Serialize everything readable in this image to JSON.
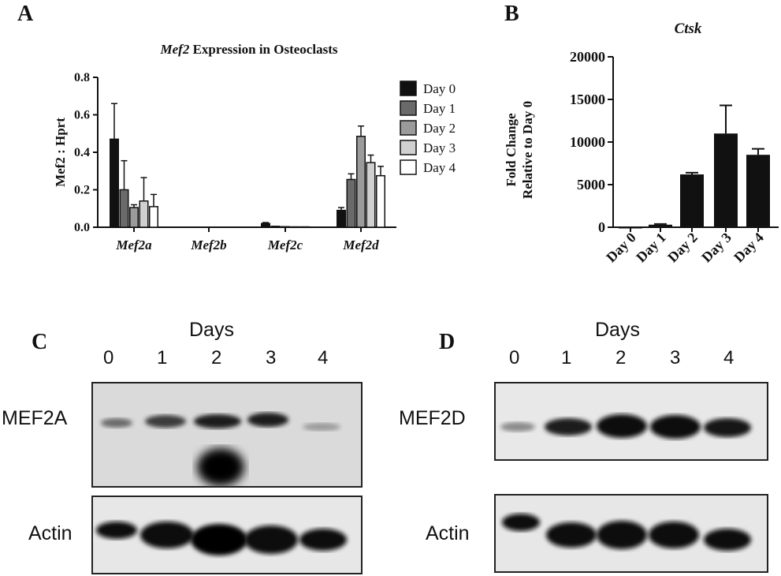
{
  "panels": {
    "a": "A",
    "b": "B",
    "c": "C",
    "d": "D"
  },
  "chart_data": [
    {
      "type": "bar",
      "title_italic": "Mef2",
      "title_rest": "Expression in Osteoclasts",
      "ylabel": "Mef2 : Hprt",
      "ylim": [
        0,
        0.8
      ],
      "yticks": [
        "0.0",
        "0.2",
        "0.4",
        "0.6",
        "0.8"
      ],
      "categories": [
        "Mef2a",
        "Mef2b",
        "Mef2c",
        "Mef2d"
      ],
      "legend_position": "right",
      "series": [
        {
          "name": "Day 0",
          "color": "#111111",
          "values": [
            0.47,
            0.0,
            0.02,
            0.09
          ],
          "errors": [
            0.19,
            0.0,
            0.005,
            0.015
          ]
        },
        {
          "name": "Day 1",
          "color": "#6a6a6a",
          "values": [
            0.2,
            0.0,
            0.005,
            0.255
          ],
          "errors": [
            0.155,
            0.0,
            0.0,
            0.03
          ]
        },
        {
          "name": "Day 2",
          "color": "#9b9b9b",
          "values": [
            0.105,
            0.0,
            0.003,
            0.485
          ],
          "errors": [
            0.015,
            0.0,
            0.0,
            0.055
          ]
        },
        {
          "name": "Day 3",
          "color": "#d0d0d0",
          "values": [
            0.14,
            0.0,
            0.002,
            0.345
          ],
          "errors": [
            0.125,
            0.0,
            0.0,
            0.04
          ]
        },
        {
          "name": "Day 4",
          "color": "#ffffff",
          "values": [
            0.11,
            0.0,
            0.002,
            0.275
          ],
          "errors": [
            0.065,
            0.0,
            0.0,
            0.05
          ]
        }
      ]
    },
    {
      "type": "bar",
      "title": "Ctsk",
      "ylabel_line1": "Fold Change",
      "ylabel_line2": "Relative to Day 0",
      "ylim": [
        0,
        20000
      ],
      "yticks": [
        "0",
        "5000",
        "10000",
        "15000",
        "20000"
      ],
      "categories": [
        "Day 0",
        "Day 1",
        "Day 2",
        "Day 3",
        "Day 4"
      ],
      "values": [
        1,
        300,
        6200,
        11000,
        8500
      ],
      "errors": [
        0,
        80,
        200,
        3300,
        700
      ],
      "color": "#111111"
    }
  ],
  "blot_c": {
    "days_title": "Days",
    "lanes": [
      "0",
      "1",
      "2",
      "3",
      "4"
    ],
    "top_label": "MEF2A",
    "bottom_label": "Actin"
  },
  "blot_d": {
    "days_title": "Days",
    "lanes": [
      "0",
      "1",
      "2",
      "3",
      "4"
    ],
    "top_label": "MEF2D",
    "bottom_label": "Actin"
  }
}
